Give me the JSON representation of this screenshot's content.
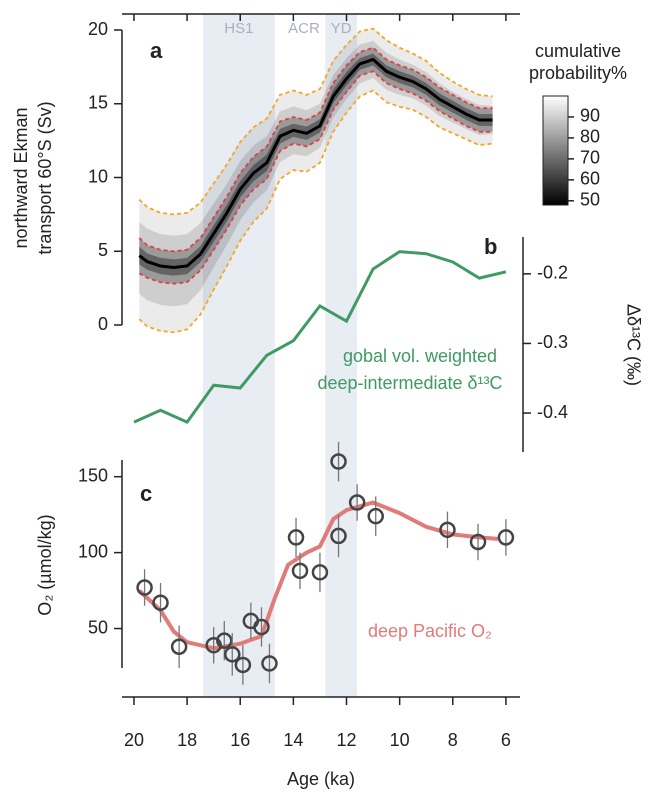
{
  "chart_data": [
    {
      "type": "band-line",
      "label": "a",
      "ylabel": [
        "northward Ekman",
        "transport 60°S (Sv)"
      ],
      "ylim": [
        0,
        20
      ],
      "yticks": [
        0,
        5,
        10,
        15,
        20
      ],
      "x": [
        19.8,
        19.5,
        19,
        18.5,
        18,
        17.5,
        17,
        16.5,
        16,
        15.5,
        15,
        14.5,
        14,
        13.5,
        13,
        12.5,
        12,
        11.5,
        11,
        10.5,
        10,
        9.5,
        9,
        8.5,
        8,
        7.5,
        7,
        6.5
      ],
      "median": [
        4.7,
        4.3,
        4.0,
        3.9,
        4.0,
        4.8,
        6.2,
        7.6,
        9.2,
        10.3,
        11.0,
        12.8,
        13.2,
        13.0,
        13.5,
        15.5,
        16.7,
        17.7,
        18.0,
        17.2,
        16.8,
        16.5,
        16.0,
        15.3,
        14.8,
        14.3,
        13.9,
        13.9
      ],
      "inner_upper": [
        5.9,
        5.4,
        5.1,
        5.0,
        5.1,
        5.9,
        7.3,
        8.7,
        10.3,
        11.4,
        12.1,
        13.8,
        14.1,
        13.9,
        14.4,
        16.4,
        17.6,
        18.5,
        18.8,
        18.0,
        17.6,
        17.3,
        16.8,
        16.1,
        15.6,
        15.1,
        14.7,
        14.7
      ],
      "inner_lower": [
        3.5,
        3.2,
        2.9,
        2.8,
        2.9,
        3.7,
        5.1,
        6.5,
        8.1,
        9.2,
        9.9,
        11.8,
        12.3,
        12.1,
        12.6,
        14.6,
        15.8,
        16.9,
        17.2,
        16.4,
        16.0,
        15.7,
        15.2,
        14.5,
        14.0,
        13.5,
        13.1,
        13.1
      ],
      "outer_upper": [
        8.5,
        8.0,
        7.6,
        7.5,
        7.6,
        8.3,
        9.6,
        10.9,
        12.4,
        13.4,
        14.0,
        15.6,
        15.9,
        15.6,
        16.0,
        17.9,
        19.0,
        19.9,
        20.1,
        19.3,
        18.8,
        18.4,
        17.9,
        17.1,
        16.5,
        16.0,
        15.6,
        15.5
      ],
      "outer_lower": [
        0.4,
        -0.1,
        -0.4,
        -0.5,
        -0.3,
        0.7,
        2.4,
        4.0,
        5.7,
        7.0,
        7.9,
        9.9,
        10.5,
        10.4,
        11.0,
        13.1,
        14.4,
        15.5,
        15.9,
        15.1,
        14.8,
        14.6,
        14.1,
        13.4,
        13.0,
        12.6,
        12.2,
        12.3
      ],
      "colorbar": {
        "title": [
          "cumulative",
          "probability%"
        ],
        "lim": [
          48,
          100
        ],
        "ticks": [
          50,
          60,
          70,
          80,
          90
        ]
      },
      "shaded": [
        {
          "label": "HS1",
          "from": 17.4,
          "to": 14.7
        },
        {
          "label": "YD",
          "from": 12.8,
          "to": 11.6
        }
      ],
      "annotations": [
        {
          "text": "ACR",
          "x": 13.6
        }
      ]
    },
    {
      "type": "line",
      "label": "b",
      "ylabel": "Δδ¹³C (‰)",
      "color": "#3f9a63",
      "ylim": [
        -0.456,
        -0.147
      ],
      "yticks": [
        -0.4,
        -0.3,
        -0.2
      ],
      "annotation": [
        "gobal vol. weighted",
        "deep-intermediate δ¹³C"
      ],
      "x": [
        20,
        19,
        18,
        17,
        16,
        15,
        14,
        13,
        12,
        11,
        10,
        9,
        8,
        7,
        6
      ],
      "values": [
        -0.413,
        -0.396,
        -0.413,
        -0.36,
        -0.364,
        -0.317,
        -0.296,
        -0.246,
        -0.268,
        -0.193,
        -0.168,
        -0.171,
        -0.183,
        -0.206,
        -0.197
      ]
    },
    {
      "type": "errorbar-scatter",
      "label": "c",
      "ylabel": "O₂ (µmol/kg)",
      "xlabel": "Age (ka)",
      "xlim": [
        20.45,
        5.47
      ],
      "xticks": [
        20,
        18,
        16,
        14,
        12,
        10,
        8,
        6
      ],
      "ylim": [
        24,
        161
      ],
      "yticks": [
        50,
        100,
        150
      ],
      "x": [
        19.6,
        19.0,
        18.3,
        17.0,
        16.6,
        16.3,
        15.9,
        15.6,
        15.2,
        14.9,
        13.9,
        13.75,
        13.0,
        12.3,
        12.3,
        11.6,
        10.9,
        8.2,
        7.05,
        6.0
      ],
      "values": [
        77,
        67,
        38,
        39,
        42,
        33,
        26,
        55,
        51,
        27,
        110,
        88,
        87,
        160,
        111,
        133,
        124,
        115,
        107,
        110
      ],
      "errors": [
        12,
        13,
        14,
        12,
        13,
        14,
        13,
        12,
        13,
        13,
        13,
        12,
        13,
        13,
        14,
        12,
        13,
        12,
        12,
        12
      ],
      "curve": {
        "name": "deep Pacific O₂",
        "color": "#e07b78",
        "x": [
          19.8,
          19,
          18.5,
          18,
          17,
          16,
          15.2,
          14.7,
          14.2,
          13.5,
          13,
          12.5,
          12,
          11,
          10,
          9,
          8,
          7,
          6.3
        ],
        "values": [
          75,
          62,
          48,
          41,
          37,
          40,
          45,
          70,
          92,
          100,
          104,
          122,
          128,
          133,
          126,
          117,
          112,
          110,
          109
        ]
      }
    }
  ]
}
